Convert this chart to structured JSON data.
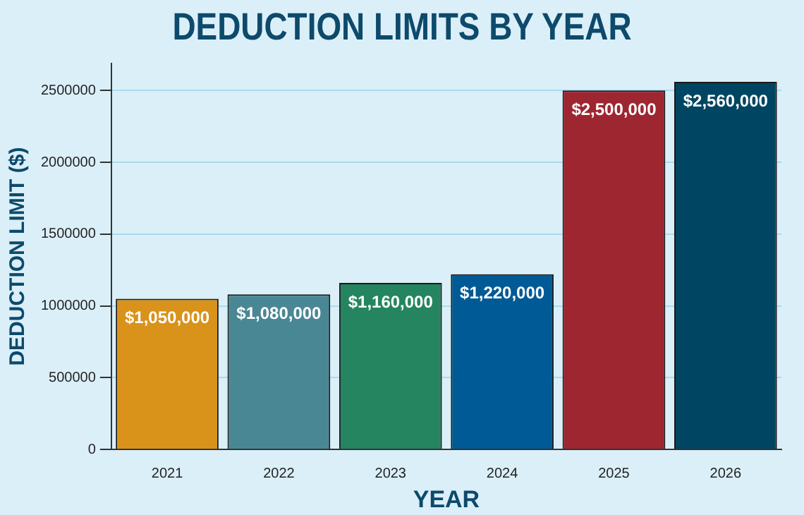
{
  "chart_data": {
    "type": "bar",
    "title": "DEDUCTION LIMITS BY YEAR",
    "xlabel": "YEAR",
    "ylabel": "DEDUCTION LIMIT ($)",
    "categories": [
      "2021",
      "2022",
      "2023",
      "2024",
      "2025",
      "2026"
    ],
    "values": [
      1050000,
      1080000,
      1160000,
      1220000,
      2500000,
      2560000
    ],
    "colors": [
      "#d9921a",
      "#4a8794",
      "#248560",
      "#005a96",
      "#9e2630",
      "#004561"
    ],
    "value_labels": [
      "$1,050,000",
      "$1,080,000",
      "$1,160,000",
      "$1,220,000",
      "$2,500,000",
      "$2,560,000"
    ],
    "ylim": [
      0,
      2688000
    ],
    "yticks": [
      0,
      500000,
      1000000,
      1500000,
      2000000,
      2500000
    ],
    "grid": "y",
    "legend": false
  }
}
